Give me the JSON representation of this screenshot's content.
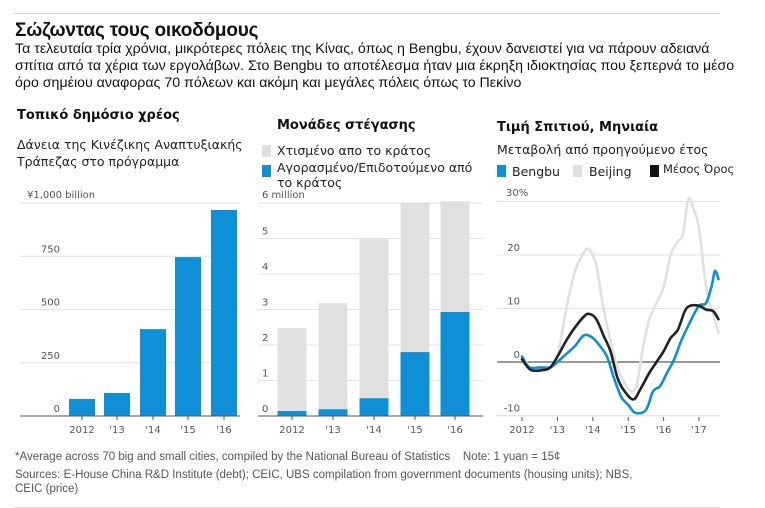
{
  "header": {
    "title": "Σώζωντας τους οικοδόμους",
    "dek": "Τα τελευταία τρία χρόνια, μικρότερες πόλεις της Κίνας, όπως η Bengbu, έχουν δανειστεί για να πάρουν αδειανά σπίτια από τα χέρια των εργολάβων. Στο Bengbu το αποτέλεσμα ήταν μια έκρηξη ιδιοκτησίας που ξεπερνά το μέσο όρο σημέιου αναφορας 70 πόλεων και ακόμη και μεγάλες πόλεις όπως το Πεκίνο"
  },
  "colors": {
    "blue": "#0e8fd6",
    "gray": "#e0e0e0",
    "black": "#111111",
    "grid": "#e2e2e2",
    "axis": "#555555"
  },
  "chart_data": [
    {
      "type": "bar",
      "title": "Τοπικό δημόσιο χρέος",
      "subtitle": "Δάνεια της Κινέζικης Αναπτυξιακής Τράπεζας στο πρόγραμμα",
      "unit_label": "¥1,000 billion",
      "categories": [
        "2012",
        "'13",
        "'14",
        "'15",
        "'16"
      ],
      "values": [
        80,
        108,
        408,
        746,
        967
      ],
      "ylim": [
        0,
        1000
      ],
      "yticks": [
        0,
        250,
        500,
        750
      ],
      "ytick_labels": [
        "0",
        "250",
        "500",
        "750"
      ],
      "grid": true,
      "xlabel": "",
      "ylabel": ""
    },
    {
      "type": "bar",
      "stacked": true,
      "title": "Μονάδες στέγασης",
      "unit_label": "6 million",
      "categories": [
        "2012",
        "'13",
        "'14",
        "'15",
        "'16"
      ],
      "series": [
        {
          "name": "Αγορασμένο/Επιδοτούμενο από το κράτος",
          "values": [
            0.14,
            0.19,
            0.5,
            1.8,
            2.93
          ]
        },
        {
          "name": "Χτισμένο απο το κράτος",
          "values": [
            2.34,
            2.99,
            4.48,
            4.2,
            3.12
          ]
        }
      ],
      "totals": [
        2.48,
        3.18,
        4.98,
        6.0,
        6.05
      ],
      "legend": [
        "Χτισμένο απο το κράτος",
        "Αγορασμένο/Επιδοτούμενο από το κράτος"
      ],
      "legend_placement": "top",
      "ylim": [
        0,
        6
      ],
      "yticks": [
        0,
        1,
        2,
        3,
        4,
        5
      ],
      "ytick_labels": [
        "0",
        "1",
        "2",
        "3",
        "4",
        "5"
      ],
      "grid": true,
      "xlabel": "",
      "ylabel": ""
    },
    {
      "type": "line",
      "title": "Τιμή Σπιτιού, Μηνιαία",
      "subtitle": "Μεταβολή από προηγούμενο έτος",
      "unit_label": "30%",
      "legend": [
        "Bengbu",
        "Beijing",
        "Μέσος Όρος"
      ],
      "legend_placement": "top",
      "xlim": [
        2011.75,
        2017.6
      ],
      "xticks": [
        2012,
        2013,
        2014,
        2015,
        2016,
        2017
      ],
      "xtick_labels": [
        "2012",
        "'13",
        "'14",
        "'15",
        "'16",
        "'17"
      ],
      "ylim": [
        -10,
        30
      ],
      "yticks": [
        -10,
        0,
        10,
        20
      ],
      "ytick_labels": [
        "-10",
        "0",
        "10",
        "20"
      ],
      "grid": true,
      "series": [
        {
          "name": "Beijing",
          "x": [
            2012.0,
            2012.25,
            2012.5,
            2012.75,
            2013.0,
            2013.25,
            2013.5,
            2013.75,
            2013.9,
            2014.1,
            2014.3,
            2014.5,
            2014.7,
            2014.9,
            2015.1,
            2015.25,
            2015.4,
            2015.6,
            2015.8,
            2016.0,
            2016.2,
            2016.4,
            2016.55,
            2016.7,
            2016.85,
            2017.0,
            2017.2,
            2017.4,
            2017.55
          ],
          "y": [
            1,
            -1,
            -1.5,
            -1,
            1,
            10,
            17,
            20.5,
            21,
            18,
            10,
            4,
            -1,
            -4,
            -5.5,
            -4,
            2,
            8,
            11,
            14,
            20,
            22.5,
            24,
            30.5,
            28.5,
            25,
            14,
            9,
            5.5
          ]
        },
        {
          "name": "Bengbu",
          "x": [
            2012.0,
            2012.2,
            2012.5,
            2012.8,
            2013.0,
            2013.25,
            2013.5,
            2013.75,
            2014.0,
            2014.2,
            2014.4,
            2014.6,
            2014.8,
            2015.0,
            2015.2,
            2015.5,
            2015.7,
            2015.9,
            2016.1,
            2016.3,
            2016.5,
            2016.75,
            2017.0,
            2017.2,
            2017.35,
            2017.45,
            2017.55
          ],
          "y": [
            1,
            -1,
            -1,
            -1,
            0,
            1.5,
            3,
            5,
            4.5,
            3,
            1,
            -3,
            -6.5,
            -8,
            -9.5,
            -9,
            -5.5,
            -4.5,
            -2,
            0.5,
            4,
            7.5,
            10.5,
            11,
            14,
            17,
            15.5
          ]
        },
        {
          "name": "Μέσος Όρος",
          "x": [
            2012.0,
            2012.25,
            2012.6,
            2012.8,
            2013.0,
            2013.25,
            2013.5,
            2013.75,
            2013.9,
            2014.1,
            2014.3,
            2014.5,
            2014.7,
            2014.9,
            2015.15,
            2015.35,
            2015.6,
            2015.8,
            2016.0,
            2016.2,
            2016.4,
            2016.6,
            2016.75,
            2017.0,
            2017.2,
            2017.4,
            2017.55
          ],
          "y": [
            0.5,
            -1.5,
            -1.5,
            -1,
            1,
            4,
            6.5,
            8.5,
            9,
            8,
            5,
            2,
            -3,
            -5.5,
            -7,
            -5,
            -2,
            0,
            2,
            4.5,
            6,
            9.5,
            10.5,
            10.5,
            9.8,
            9.5,
            8
          ]
        }
      ]
    }
  ],
  "footer": {
    "note": "*Average across 70 big and small cities, compiled by the National Bureau of Statistics    Note: 1 yuan = 15¢",
    "sources": "Sources: E-House China R&D Institute (debt); CEIC, UBS compilation from government documents (housing units); NBS, CEIC (price)"
  }
}
